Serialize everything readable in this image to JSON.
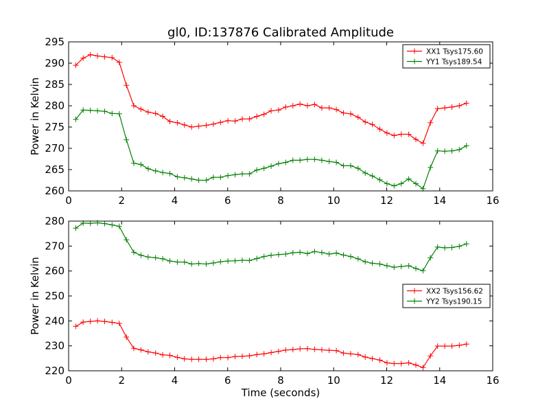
{
  "title": "gl0, ID:137876 Calibrated Amplitude",
  "colors": {
    "red": "#ff0000",
    "green": "#008000"
  },
  "chart_data": [
    {
      "type": "line",
      "ylabel": "Power in Kelvin",
      "xlabel": "",
      "xlim": [
        0,
        16
      ],
      "ylim": [
        260,
        295
      ],
      "xticks": [
        0,
        2,
        4,
        6,
        8,
        10,
        12,
        14,
        16
      ],
      "yticks": [
        260,
        265,
        270,
        275,
        280,
        285,
        290,
        295
      ],
      "legend_position": "top-right",
      "series": [
        {
          "name": "XX1 Tsys175.60",
          "color": "#ff0000",
          "x": [
            0.27,
            0.55,
            0.82,
            1.09,
            1.36,
            1.64,
            1.91,
            2.18,
            2.46,
            2.73,
            3.0,
            3.28,
            3.55,
            3.82,
            4.1,
            4.37,
            4.64,
            4.91,
            5.19,
            5.46,
            5.73,
            6.01,
            6.28,
            6.55,
            6.82,
            7.1,
            7.37,
            7.64,
            7.92,
            8.19,
            8.46,
            8.73,
            9.01,
            9.28,
            9.55,
            9.83,
            10.1,
            10.37,
            10.64,
            10.92,
            11.19,
            11.46,
            11.74,
            12.01,
            12.28,
            12.55,
            12.83,
            13.1,
            13.37,
            13.65,
            13.92,
            14.19,
            14.46,
            14.74,
            15.01
          ],
          "y": [
            289.5,
            291.2,
            292.0,
            291.7,
            291.5,
            291.3,
            290.2,
            284.8,
            280.0,
            279.2,
            278.5,
            278.2,
            277.5,
            276.3,
            276.0,
            275.5,
            275.0,
            275.2,
            275.4,
            275.7,
            276.1,
            276.5,
            276.4,
            276.9,
            276.9,
            277.5,
            278.0,
            278.8,
            279.0,
            279.7,
            280.0,
            280.4,
            280.0,
            280.3,
            279.5,
            279.5,
            279.1,
            278.3,
            278.1,
            277.3,
            276.2,
            275.6,
            274.5,
            273.6,
            273.0,
            273.3,
            273.3,
            272.1,
            271.2,
            276.0,
            279.3,
            279.5,
            279.7,
            280.0,
            280.6
          ]
        },
        {
          "name": "YY1 Tsys189.54",
          "color": "#008000",
          "x": [
            0.27,
            0.55,
            0.82,
            1.09,
            1.36,
            1.64,
            1.91,
            2.18,
            2.46,
            2.73,
            3.0,
            3.28,
            3.55,
            3.82,
            4.1,
            4.37,
            4.64,
            4.91,
            5.19,
            5.46,
            5.73,
            6.01,
            6.28,
            6.55,
            6.82,
            7.1,
            7.37,
            7.64,
            7.92,
            8.19,
            8.46,
            8.73,
            9.01,
            9.28,
            9.55,
            9.83,
            10.1,
            10.37,
            10.64,
            10.92,
            11.19,
            11.46,
            11.74,
            12.01,
            12.28,
            12.55,
            12.83,
            13.1,
            13.37,
            13.65,
            13.92,
            14.19,
            14.46,
            14.74,
            15.01
          ],
          "y": [
            276.8,
            279.0,
            278.9,
            278.8,
            278.7,
            278.2,
            278.1,
            272.0,
            266.5,
            266.2,
            265.2,
            264.7,
            264.3,
            264.1,
            263.3,
            263.1,
            262.8,
            262.5,
            262.5,
            263.2,
            263.2,
            263.6,
            263.8,
            264.0,
            264.0,
            264.9,
            265.3,
            265.8,
            266.4,
            266.7,
            267.2,
            267.2,
            267.4,
            267.4,
            267.2,
            266.9,
            266.7,
            265.9,
            265.9,
            265.3,
            264.2,
            263.5,
            262.6,
            261.7,
            261.2,
            261.7,
            262.8,
            261.7,
            260.5,
            265.5,
            269.4,
            269.3,
            269.4,
            269.7,
            270.6
          ]
        }
      ]
    },
    {
      "type": "line",
      "ylabel": "Power in Kelvin",
      "xlabel": "Time (seconds)",
      "xlim": [
        0,
        16
      ],
      "ylim": [
        220,
        280
      ],
      "xticks": [
        0,
        2,
        4,
        6,
        8,
        10,
        12,
        14,
        16
      ],
      "yticks": [
        220,
        230,
        240,
        250,
        260,
        270,
        280
      ],
      "legend_position": "center-right",
      "series": [
        {
          "name": "XX2 Tsys156.62",
          "color": "#ff0000",
          "x": [
            0.27,
            0.55,
            0.82,
            1.09,
            1.36,
            1.64,
            1.91,
            2.18,
            2.46,
            2.73,
            3.0,
            3.28,
            3.55,
            3.82,
            4.1,
            4.37,
            4.64,
            4.91,
            5.19,
            5.46,
            5.73,
            6.01,
            6.28,
            6.55,
            6.82,
            7.1,
            7.37,
            7.64,
            7.92,
            8.19,
            8.46,
            8.73,
            9.01,
            9.28,
            9.55,
            9.83,
            10.1,
            10.37,
            10.64,
            10.92,
            11.19,
            11.46,
            11.74,
            12.01,
            12.28,
            12.55,
            12.83,
            13.1,
            13.37,
            13.65,
            13.92,
            14.19,
            14.46,
            14.74,
            15.01
          ],
          "y": [
            237.8,
            239.5,
            239.8,
            240.0,
            239.8,
            239.4,
            239.0,
            233.5,
            229.0,
            228.4,
            227.6,
            227.1,
            226.4,
            226.2,
            225.4,
            224.8,
            224.6,
            224.6,
            224.6,
            224.8,
            225.3,
            225.3,
            225.7,
            225.8,
            226.0,
            226.5,
            226.8,
            227.3,
            227.8,
            228.3,
            228.5,
            228.8,
            228.9,
            228.6,
            228.4,
            228.2,
            228.1,
            227.1,
            226.8,
            226.5,
            225.5,
            224.9,
            224.3,
            223.2,
            222.9,
            222.9,
            223.2,
            222.3,
            221.3,
            226.0,
            229.9,
            229.9,
            229.9,
            230.2,
            230.7
          ]
        },
        {
          "name": "YY2 Tsys190.15",
          "color": "#008000",
          "x": [
            0.27,
            0.55,
            0.82,
            1.09,
            1.36,
            1.64,
            1.91,
            2.18,
            2.46,
            2.73,
            3.0,
            3.28,
            3.55,
            3.82,
            4.1,
            4.37,
            4.64,
            4.91,
            5.19,
            5.46,
            5.73,
            6.01,
            6.28,
            6.55,
            6.82,
            7.1,
            7.37,
            7.64,
            7.92,
            8.19,
            8.46,
            8.73,
            9.01,
            9.28,
            9.55,
            9.83,
            10.1,
            10.37,
            10.64,
            10.92,
            11.19,
            11.46,
            11.74,
            12.01,
            12.28,
            12.55,
            12.83,
            13.1,
            13.37,
            13.65,
            13.92,
            14.19,
            14.46,
            14.74,
            15.01
          ],
          "y": [
            277.2,
            279.2,
            279.1,
            279.3,
            279.0,
            278.5,
            277.9,
            272.5,
            267.5,
            266.3,
            265.6,
            265.3,
            264.9,
            264.0,
            263.6,
            263.6,
            262.8,
            263.0,
            262.8,
            263.2,
            263.7,
            264.0,
            264.1,
            264.3,
            264.2,
            265.0,
            265.8,
            266.3,
            266.6,
            266.8,
            267.3,
            267.5,
            267.0,
            267.8,
            267.4,
            266.8,
            267.2,
            266.4,
            265.8,
            264.9,
            263.7,
            263.1,
            262.8,
            262.1,
            261.5,
            261.8,
            262.1,
            261.0,
            260.1,
            265.3,
            269.6,
            269.3,
            269.4,
            269.9,
            270.9
          ]
        }
      ]
    }
  ]
}
